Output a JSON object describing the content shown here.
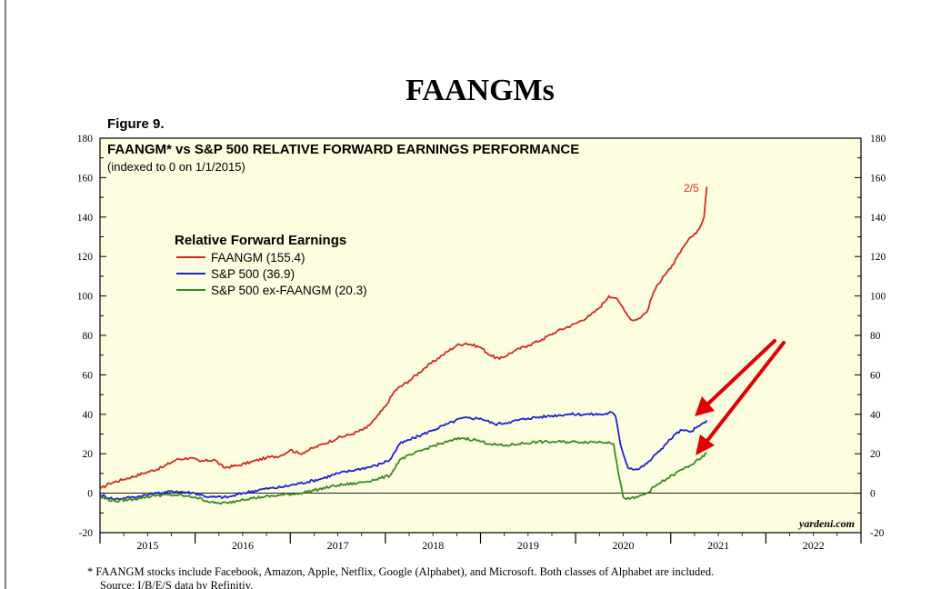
{
  "header": {
    "title": "FAANGMs",
    "figure_label": "Figure 9."
  },
  "footnote": {
    "line1": "*   FAANGM stocks include Facebook, Amazon, Apple, Netflix, Google (Alphabet), and Microsoft. Both classes of Alphabet are included.",
    "line2": "Source: I/B/E/S data by Refinitiv."
  },
  "colors": {
    "plot_background": "#fdfde0",
    "faangm": "#d42a1f",
    "sp500": "#1c22d8",
    "sp500_ex": "#3a8a22",
    "arrow": "#e00000"
  },
  "chart_data": {
    "type": "line",
    "title": "FAANGM* vs S&P 500 RELATIVE FORWARD EARNINGS PERFORMANCE",
    "subtitle": "(indexed to 0 on 1/1/2015)",
    "ylim": [
      -20,
      180
    ],
    "yticks": [
      -20,
      0,
      20,
      40,
      60,
      80,
      100,
      120,
      140,
      160,
      180
    ],
    "xlim": [
      2014.5,
      2022.5
    ],
    "xticks": [
      "2015",
      "2016",
      "2017",
      "2018",
      "2019",
      "2020",
      "2021",
      "2022"
    ],
    "grid": false,
    "legend_title": "Relative Forward Earnings",
    "legend_position": "upper-left",
    "end_label": "2/5",
    "watermark": "yardeni.com",
    "reference_line": 0,
    "series": [
      {
        "name": "FAANGM (155.4)",
        "key": "faangm",
        "points": [
          [
            2014.5,
            2
          ],
          [
            2014.6,
            5
          ],
          [
            2014.75,
            7
          ],
          [
            2014.95,
            10
          ],
          [
            2015.15,
            13
          ],
          [
            2015.3,
            17
          ],
          [
            2015.45,
            18
          ],
          [
            2015.55,
            16
          ],
          [
            2015.7,
            17
          ],
          [
            2015.8,
            13
          ],
          [
            2015.95,
            14
          ],
          [
            2016.1,
            16
          ],
          [
            2016.25,
            18
          ],
          [
            2016.4,
            19
          ],
          [
            2016.5,
            22
          ],
          [
            2016.6,
            20
          ],
          [
            2016.7,
            22
          ],
          [
            2016.85,
            25
          ],
          [
            2017.0,
            28
          ],
          [
            2017.15,
            30
          ],
          [
            2017.3,
            33
          ],
          [
            2017.4,
            38
          ],
          [
            2017.5,
            44
          ],
          [
            2017.6,
            52
          ],
          [
            2017.75,
            57
          ],
          [
            2017.9,
            63
          ],
          [
            2018.1,
            70
          ],
          [
            2018.25,
            75
          ],
          [
            2018.35,
            76
          ],
          [
            2018.5,
            74
          ],
          [
            2018.6,
            70
          ],
          [
            2018.7,
            68
          ],
          [
            2018.85,
            72
          ],
          [
            2019.0,
            75
          ],
          [
            2019.15,
            78
          ],
          [
            2019.3,
            82
          ],
          [
            2019.5,
            86
          ],
          [
            2019.65,
            90
          ],
          [
            2019.75,
            94
          ],
          [
            2019.85,
            100
          ],
          [
            2019.92,
            99
          ],
          [
            2020.0,
            94
          ],
          [
            2020.08,
            88
          ],
          [
            2020.15,
            88
          ],
          [
            2020.25,
            92
          ],
          [
            2020.32,
            102
          ],
          [
            2020.42,
            110
          ],
          [
            2020.5,
            114
          ],
          [
            2020.6,
            122
          ],
          [
            2020.65,
            126
          ],
          [
            2020.72,
            130
          ],
          [
            2020.8,
            134
          ],
          [
            2020.85,
            140
          ],
          [
            2020.88,
            155.4
          ]
        ]
      },
      {
        "name": "S&P 500 (36.9)",
        "key": "sp500",
        "points": [
          [
            2014.5,
            -1
          ],
          [
            2014.65,
            -3
          ],
          [
            2014.85,
            -2
          ],
          [
            2015.1,
            0
          ],
          [
            2015.3,
            1
          ],
          [
            2015.5,
            0
          ],
          [
            2015.65,
            -2
          ],
          [
            2015.85,
            -2
          ],
          [
            2016.0,
            0
          ],
          [
            2016.2,
            2
          ],
          [
            2016.4,
            3
          ],
          [
            2016.6,
            5
          ],
          [
            2016.8,
            7
          ],
          [
            2017.0,
            10
          ],
          [
            2017.2,
            12
          ],
          [
            2017.4,
            14
          ],
          [
            2017.55,
            17
          ],
          [
            2017.65,
            25
          ],
          [
            2017.8,
            28
          ],
          [
            2018.0,
            32
          ],
          [
            2018.15,
            35
          ],
          [
            2018.3,
            38
          ],
          [
            2018.5,
            38
          ],
          [
            2018.65,
            35
          ],
          [
            2018.8,
            36
          ],
          [
            2019.0,
            38
          ],
          [
            2019.2,
            39
          ],
          [
            2019.4,
            40
          ],
          [
            2019.6,
            40
          ],
          [
            2019.8,
            40
          ],
          [
            2019.88,
            41
          ],
          [
            2019.92,
            39
          ],
          [
            2019.97,
            25
          ],
          [
            2020.05,
            13
          ],
          [
            2020.15,
            12
          ],
          [
            2020.25,
            15
          ],
          [
            2020.35,
            20
          ],
          [
            2020.45,
            25
          ],
          [
            2020.55,
            30
          ],
          [
            2020.62,
            32
          ],
          [
            2020.7,
            31
          ],
          [
            2020.8,
            34
          ],
          [
            2020.88,
            36.9
          ]
        ]
      },
      {
        "name": "S&P 500 ex-FAANGM (20.3)",
        "key": "sp500_ex",
        "points": [
          [
            2014.5,
            -2
          ],
          [
            2014.65,
            -4
          ],
          [
            2014.85,
            -3
          ],
          [
            2015.1,
            -1
          ],
          [
            2015.3,
            -1
          ],
          [
            2015.5,
            -2
          ],
          [
            2015.7,
            -5
          ],
          [
            2015.85,
            -5
          ],
          [
            2016.0,
            -3
          ],
          [
            2016.2,
            -2
          ],
          [
            2016.4,
            -1
          ],
          [
            2016.6,
            0
          ],
          [
            2016.8,
            2
          ],
          [
            2017.0,
            4
          ],
          [
            2017.2,
            5
          ],
          [
            2017.4,
            7
          ],
          [
            2017.55,
            9
          ],
          [
            2017.65,
            17
          ],
          [
            2017.8,
            20
          ],
          [
            2018.0,
            24
          ],
          [
            2018.15,
            26
          ],
          [
            2018.3,
            28
          ],
          [
            2018.45,
            27
          ],
          [
            2018.6,
            25
          ],
          [
            2018.75,
            24
          ],
          [
            2018.9,
            25
          ],
          [
            2019.1,
            26
          ],
          [
            2019.3,
            26
          ],
          [
            2019.5,
            26
          ],
          [
            2019.7,
            26
          ],
          [
            2019.85,
            26
          ],
          [
            2019.9,
            25
          ],
          [
            2019.95,
            10
          ],
          [
            2020.0,
            -2
          ],
          [
            2020.07,
            -3
          ],
          [
            2020.15,
            -2
          ],
          [
            2020.25,
            0
          ],
          [
            2020.35,
            4
          ],
          [
            2020.45,
            7
          ],
          [
            2020.55,
            10
          ],
          [
            2020.62,
            12
          ],
          [
            2020.7,
            14
          ],
          [
            2020.8,
            17
          ],
          [
            2020.88,
            20.3
          ]
        ]
      }
    ]
  }
}
